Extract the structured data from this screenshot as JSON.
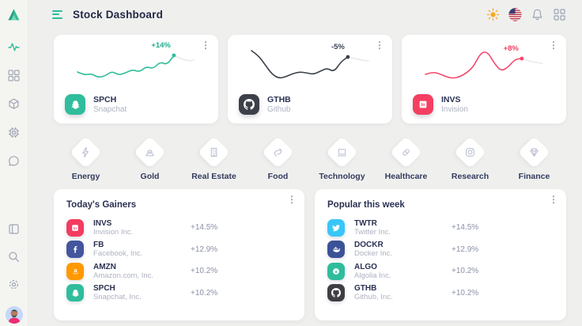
{
  "app": {
    "title": "Stock Dashboard"
  },
  "header": {
    "menu_icon": "hamburger-menu",
    "actions": [
      {
        "icon": "sun-icon",
        "label": "theme"
      },
      {
        "icon": "us-flag-icon",
        "label": "language"
      },
      {
        "icon": "bell-icon",
        "label": "notifications"
      },
      {
        "icon": "apps-grid-icon",
        "label": "apps"
      }
    ]
  },
  "sidebar": {
    "logo": "triangle-logo",
    "items": [
      {
        "icon": "activity-icon",
        "active": true
      },
      {
        "icon": "dashboard-grid-icon",
        "active": false
      },
      {
        "icon": "cube-icon",
        "active": false
      },
      {
        "icon": "cpu-icon",
        "active": false
      },
      {
        "icon": "chat-icon",
        "active": false
      }
    ],
    "bottom_items": [
      {
        "icon": "panel-icon"
      },
      {
        "icon": "search-icon"
      },
      {
        "icon": "gear-icon"
      },
      {
        "icon": "user-avatar"
      }
    ]
  },
  "stock_cards": [
    {
      "ticker": "SPCH",
      "company": "Snapchat",
      "change": "+14%",
      "accent": "#2fbd9b",
      "change_color": "#1fae8c",
      "icon": "snapchat-icon"
    },
    {
      "ticker": "GTHB",
      "company": "Github",
      "change": "-5%",
      "accent": "#3e4049",
      "change_color": "#3c4257",
      "icon": "github-icon"
    },
    {
      "ticker": "INVS",
      "company": "Invision",
      "change": "+8%",
      "accent": "#f43f63",
      "change_color": "#f43f63",
      "icon": "invision-icon"
    }
  ],
  "categories": [
    {
      "label": "Energy",
      "icon": "lightning-icon"
    },
    {
      "label": "Gold",
      "icon": "gold-bar-icon"
    },
    {
      "label": "Real Estate",
      "icon": "building-icon"
    },
    {
      "label": "Food",
      "icon": "food-icon"
    },
    {
      "label": "Technology",
      "icon": "laptop-icon"
    },
    {
      "label": "Healthcare",
      "icon": "pill-icon"
    },
    {
      "label": "Research",
      "icon": "atom-icon"
    },
    {
      "label": "Finance",
      "icon": "diamond-gem-icon"
    }
  ],
  "panels": [
    {
      "title": "Today's Gainers",
      "rows": [
        {
          "ticker": "INVS",
          "company": "Invision Inc.",
          "change": "+14.5%",
          "color": "#f43b60",
          "icon": "invision-icon"
        },
        {
          "ticker": "FB",
          "company": "Facebook, Inc.",
          "change": "+12.9%",
          "color": "#44559e",
          "icon": "facebook-icon"
        },
        {
          "ticker": "AMZN",
          "company": "Amazon.com, Inc.",
          "change": "+10.2%",
          "color": "#fe9901",
          "icon": "amazon-icon"
        },
        {
          "ticker": "SPCH",
          "company": "Snapchat, Inc.",
          "change": "+10.2%",
          "color": "#2fbd9b",
          "icon": "snapchat-icon"
        }
      ]
    },
    {
      "title": "Popular this week",
      "rows": [
        {
          "ticker": "TWTR",
          "company": "Twitter Inc.",
          "change": "+14.5%",
          "color": "#38c6f9",
          "icon": "twitter-icon"
        },
        {
          "ticker": "DOCKR",
          "company": "Docker Inc.",
          "change": "+12.9%",
          "color": "#3b5296",
          "icon": "docker-icon"
        },
        {
          "ticker": "ALGO",
          "company": "Algolia Inc.",
          "change": "+10.2%",
          "color": "#2fbd9b",
          "icon": "algolia-icon"
        },
        {
          "ticker": "GTHB",
          "company": "Github, Inc.",
          "change": "+10.2%",
          "color": "#3e3e44",
          "icon": "github-icon"
        }
      ]
    }
  ],
  "chart_data": {
    "type": "line",
    "tail_color": "#e7e9ee",
    "sparklines": [
      {
        "ticker": "SPCH",
        "color": "#2fbd9b",
        "label": "+14%",
        "dot_index": 14,
        "points": [
          47,
          51,
          49,
          54,
          52,
          46,
          51,
          48,
          44,
          47,
          40,
          43,
          34,
          38,
          26,
          30,
          33,
          32
        ]
      },
      {
        "ticker": "GTHB",
        "color": "#3c4149",
        "label": "-5%",
        "dot_index": 14,
        "points": [
          20,
          26,
          38,
          50,
          55,
          53,
          49,
          47,
          48,
          50,
          46,
          42,
          47,
          34,
          28,
          30,
          32,
          33
        ]
      },
      {
        "ticker": "INVS",
        "color": "#f5476b",
        "label": "+8%",
        "dot_index": 14,
        "points": [
          50,
          47,
          49,
          53,
          55,
          53,
          48,
          40,
          23,
          21,
          36,
          46,
          41,
          31,
          30,
          33,
          35,
          36
        ]
      }
    ]
  },
  "theme": {
    "page_bg": "#eff0ee",
    "sidebar_bg": "#f4f5f1",
    "card_bg": "#ffffff",
    "title_color": "#232946",
    "muted_text": "#aeb2c2",
    "list_change_color": "#8b90a7",
    "accent_teal": "#2fbd9b"
  }
}
